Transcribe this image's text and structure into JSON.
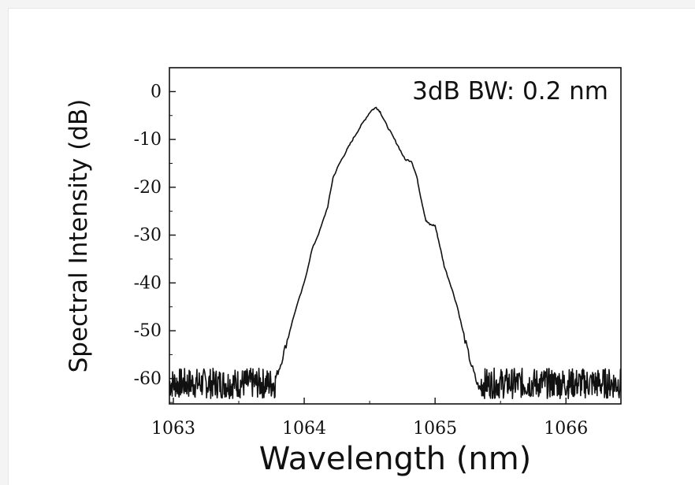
{
  "chart_data": {
    "type": "line",
    "title": "",
    "annotation": "3dB BW: 0.2 nm",
    "xlabel": "Wavelength (nm)",
    "ylabel": "Spectral Intensity (dB)",
    "xlim": [
      1062.97,
      1066.42
    ],
    "ylim": [
      -65.3,
      5
    ],
    "xticks": [
      1063,
      1064,
      1065,
      1066
    ],
    "yticks": [
      0,
      -10,
      -20,
      -30,
      -40,
      -50,
      -60
    ],
    "xtick_labels": [
      "1063",
      "1064",
      "1065",
      "1066"
    ],
    "ytick_labels": [
      "0",
      "-10",
      "-20",
      "-30",
      "-40",
      "-50",
      "-60"
    ],
    "grid": false,
    "line_color": "#111111",
    "series": [
      {
        "name": "",
        "noise_floor": {
          "left_range": [
            1062.97,
            1063.78
          ],
          "right_range": [
            1065.35,
            1066.42
          ],
          "level_db": -61,
          "spread_db": 4
        },
        "x": [
          1063.78,
          1063.82,
          1063.87,
          1063.93,
          1064.0,
          1064.06,
          1064.12,
          1064.18,
          1064.22,
          1064.27,
          1064.32,
          1064.36,
          1064.41,
          1064.46,
          1064.51,
          1064.55,
          1064.58,
          1064.62,
          1064.67,
          1064.72,
          1064.77,
          1064.82,
          1064.86,
          1064.89,
          1064.93,
          1064.96,
          1065.0,
          1065.03,
          1065.07,
          1065.12,
          1065.17,
          1065.22,
          1065.27,
          1065.32,
          1065.36
        ],
        "y": [
          -60,
          -57,
          -52,
          -46,
          -40,
          -33,
          -29,
          -24,
          -18,
          -15,
          -12.5,
          -10.5,
          -8.2,
          -6.0,
          -4.0,
          -3.3,
          -4.2,
          -6.5,
          -9.0,
          -11.5,
          -14.2,
          -14.5,
          -17.8,
          -22.0,
          -27.0,
          -27.8,
          -28.0,
          -31.5,
          -36.5,
          -40.5,
          -45.0,
          -51.0,
          -56.5,
          -61.0,
          -63.0
        ]
      }
    ]
  }
}
